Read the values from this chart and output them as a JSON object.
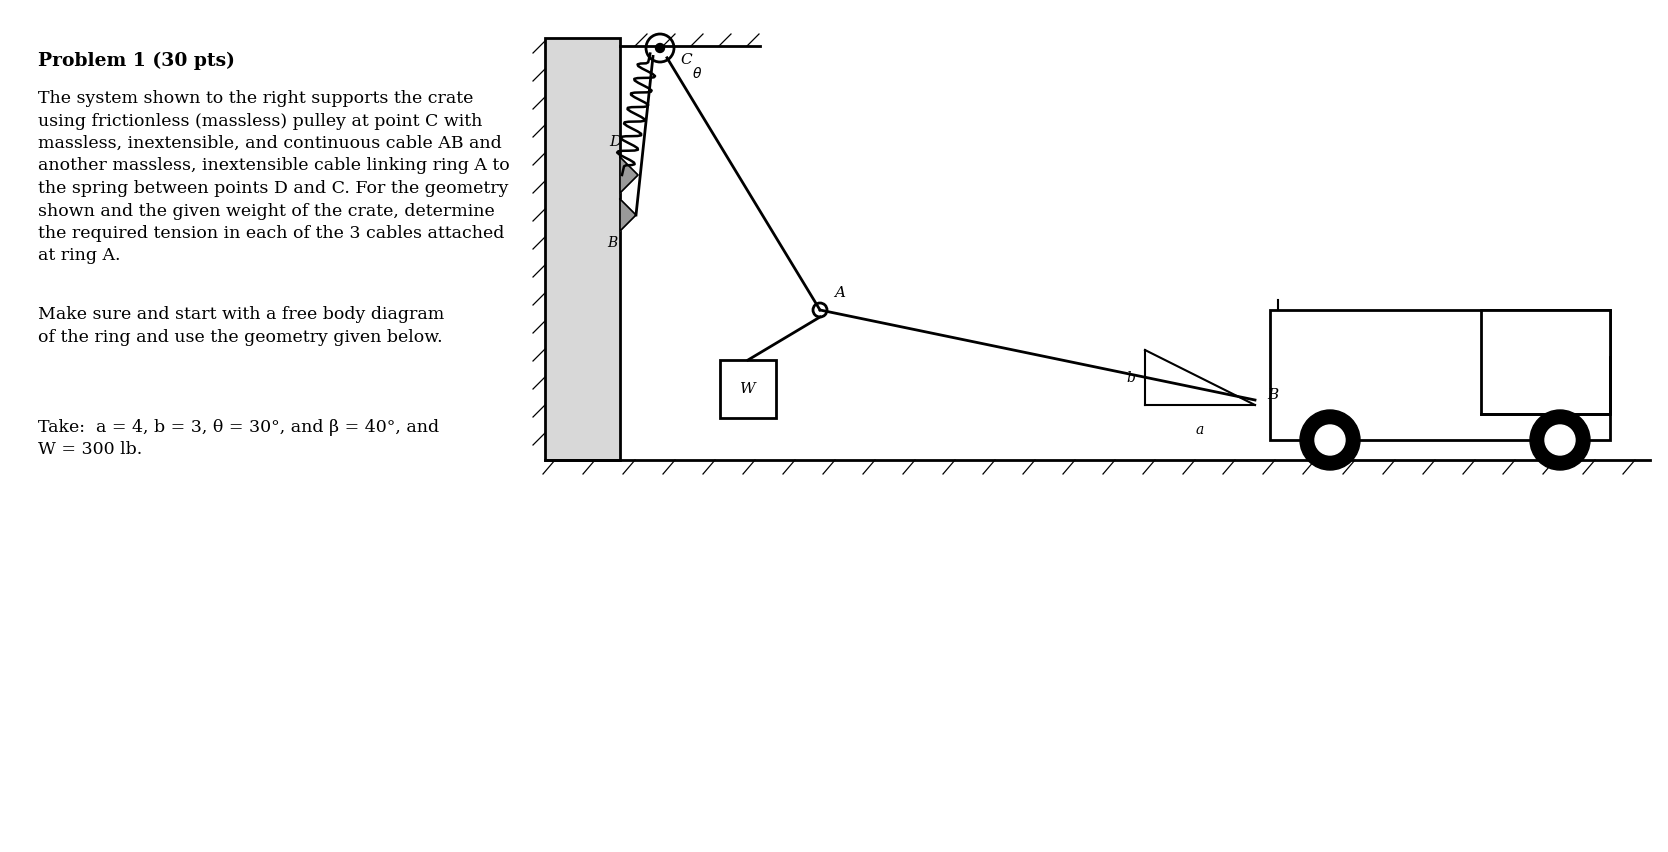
{
  "bg_color": "#ffffff",
  "title": "Problem 1 (30 pts)",
  "para1_lines": [
    "The system shown to the right supports the crate",
    "using frictionless (massless) pulley at point C with",
    "massless, inextensible, and continuous cable AB and",
    "another massless, inextensible cable linking ring A to",
    "the spring between points D and C. For the geometry",
    "shown and the given weight of the crate, determine",
    "the required tension in each of the 3 cables attached",
    "at ring A."
  ],
  "para2_lines": [
    "Make sure and start with a free body diagram",
    "of the ring and use the geometry given below."
  ],
  "para3_line1": "Take:  a = 4, b = 3, θ = 30°, and β = 40°, and",
  "para3_line2": "W = 300 lb.",
  "font_size_body": 12.5,
  "font_size_title": 13.5
}
